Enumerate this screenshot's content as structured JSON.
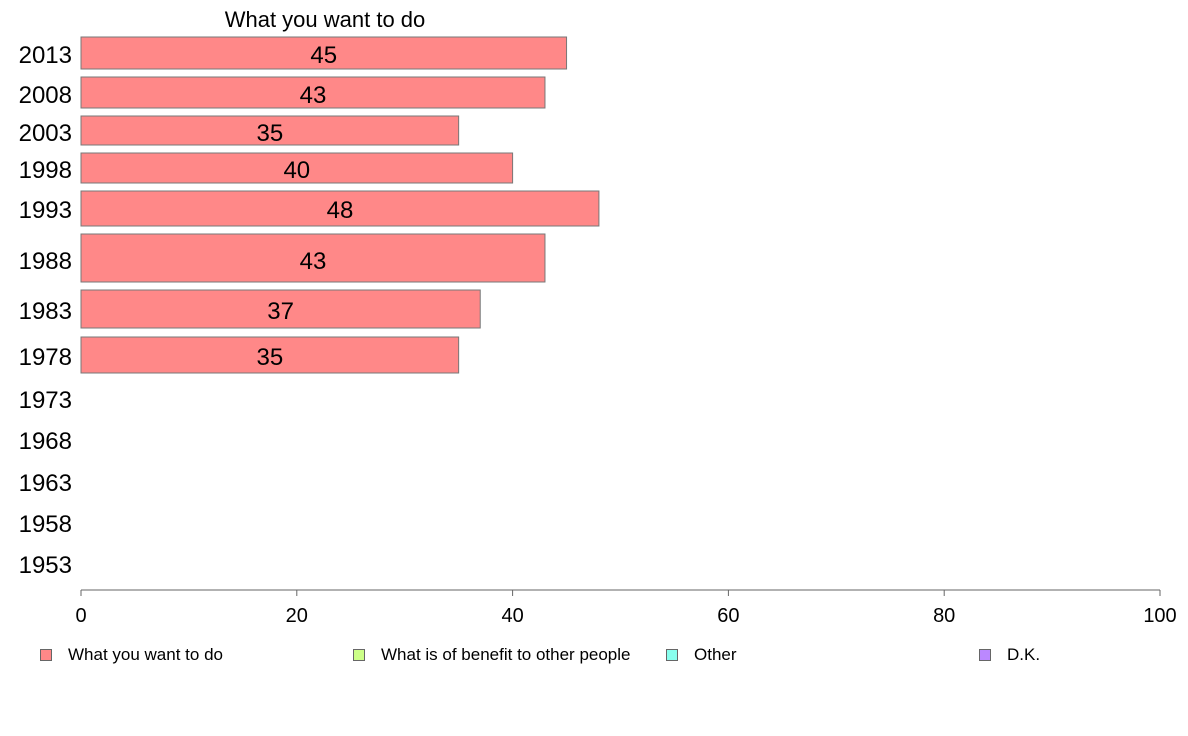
{
  "chart_data": {
    "type": "bar",
    "orientation": "horizontal",
    "title": "What you want to do",
    "categories": [
      "2013",
      "2008",
      "2003",
      "1998",
      "1993",
      "1988",
      "1983",
      "1978",
      "1973",
      "1968",
      "1963",
      "1958",
      "1953"
    ],
    "series": [
      {
        "name": "What you want to do",
        "color": "#ff8888",
        "values": [
          45,
          43,
          35,
          40,
          48,
          43,
          37,
          35,
          null,
          null,
          null,
          null,
          null
        ],
        "data_labels": [
          "45",
          "43",
          "35",
          "40",
          "48",
          "43",
          "37",
          "35",
          "",
          "",
          "",
          "",
          ""
        ]
      }
    ],
    "xlim": [
      0,
      100
    ],
    "xticks": [
      "0",
      "20",
      "40",
      "60",
      "80",
      "100"
    ],
    "grid": false,
    "legend_position": "bottom",
    "legend": [
      {
        "label": "What you want to do",
        "color": "#ff8888"
      },
      {
        "label": "What is of benefit to other people",
        "color": "#ccff88"
      },
      {
        "label": "Other",
        "color": "#88ffee"
      },
      {
        "label": "D.K.",
        "color": "#bb88ff"
      }
    ]
  }
}
